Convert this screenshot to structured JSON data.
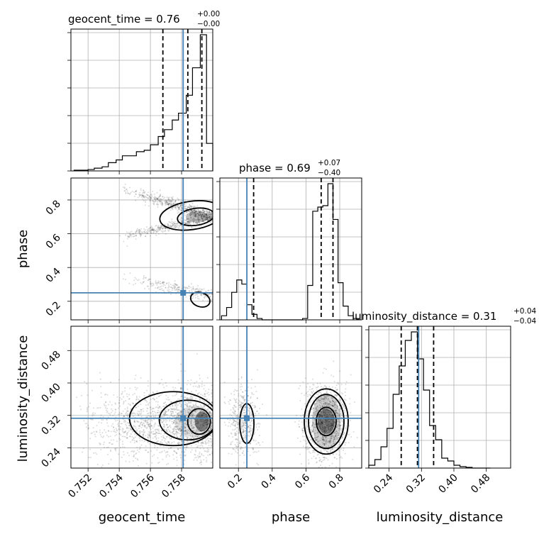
{
  "chart_data": {
    "type": "corner",
    "parameters": [
      "geocent_time",
      "phase",
      "luminosity_distance"
    ],
    "axis_labels": {
      "geocent_time": "geocent_time",
      "phase": "phase",
      "luminosity_distance": "luminosity_distance"
    },
    "ranges": {
      "geocent_time": [
        0.7509,
        0.76
      ],
      "phase": [
        0.09,
        0.93
      ],
      "luminosity_distance": [
        0.19,
        0.54
      ]
    },
    "ticks": {
      "geocent_time": [
        "0.752",
        "0.754",
        "0.756",
        "0.758"
      ],
      "phase": [
        "0.2",
        "0.4",
        "0.6",
        "0.8"
      ],
      "luminosity_distance": [
        "0.24",
        "0.32",
        "0.40",
        "0.48"
      ]
    },
    "truths": {
      "geocent_time": 0.7581,
      "phase": 0.25,
      "luminosity_distance": 0.313
    },
    "titles": [
      {
        "param": "geocent_time",
        "main": "geocent_time = 0.76",
        "plus": "+0.00",
        "minus": "−0.00"
      },
      {
        "param": "phase",
        "main": "phase = 0.69",
        "plus": "+0.07",
        "minus": "−0.40"
      },
      {
        "param": "luminosity_distance",
        "main": "luminosity_distance = 0.31",
        "plus": "+0.04",
        "minus": "−0.04"
      }
    ],
    "quantiles": {
      "geocent_time": [
        0.7568,
        0.7584,
        0.7593
      ],
      "phase": [
        0.29,
        0.69,
        0.76
      ],
      "luminosity_distance": [
        0.27,
        0.31,
        0.35
      ]
    },
    "histograms": {
      "geocent_time": {
        "edges": [
          0.7511,
          0.7515,
          0.752,
          0.7524,
          0.7529,
          0.7533,
          0.7538,
          0.7542,
          0.7547,
          0.7551,
          0.7556,
          0.756,
          0.7565,
          0.7569,
          0.7574,
          0.7578,
          0.7583,
          0.7587,
          0.7592,
          0.7596,
          0.76
        ],
        "counts": [
          0.005,
          0.005,
          0.01,
          0.02,
          0.03,
          0.06,
          0.08,
          0.11,
          0.11,
          0.14,
          0.15,
          0.19,
          0.25,
          0.3,
          0.37,
          0.42,
          0.55,
          0.75,
          0.99,
          0.2
        ]
      },
      "phase": {
        "edges": [
          0.1,
          0.13,
          0.16,
          0.19,
          0.22,
          0.25,
          0.28,
          0.31,
          0.34,
          0.37,
          0.4,
          0.43,
          0.46,
          0.49,
          0.52,
          0.55,
          0.58,
          0.61,
          0.64,
          0.67,
          0.7,
          0.73,
          0.76,
          0.79,
          0.82,
          0.85,
          0.88,
          0.91
        ],
        "counts": [
          0.03,
          0.09,
          0.2,
          0.29,
          0.26,
          0.11,
          0.04,
          0.01,
          0,
          0,
          0,
          0,
          0,
          0,
          0,
          0,
          0.01,
          0.25,
          0.79,
          0.82,
          0.83,
          0.99,
          0.73,
          0.27,
          0.1,
          0.03,
          0.01
        ],
        "max": 0.99
      },
      "luminosity_distance": {
        "edges": [
          0.19,
          0.205,
          0.22,
          0.235,
          0.25,
          0.265,
          0.28,
          0.295,
          0.31,
          0.325,
          0.34,
          0.355,
          0.37,
          0.385,
          0.4,
          0.415,
          0.43,
          0.445,
          0.46,
          0.475,
          0.49
        ],
        "counts": [
          0.02,
          0.06,
          0.15,
          0.28,
          0.52,
          0.72,
          0.9,
          0.96,
          0.77,
          0.55,
          0.3,
          0.2,
          0.07,
          0.05,
          0.02,
          0.01,
          0.005,
          0,
          0,
          0
        ]
      }
    }
  }
}
